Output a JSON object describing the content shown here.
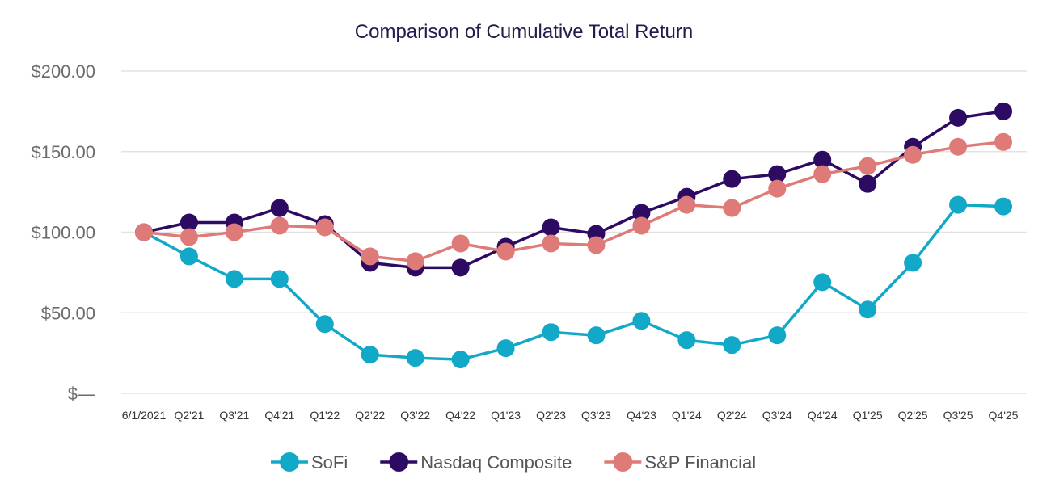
{
  "chart_data": {
    "type": "line",
    "title": "Comparison of Cumulative Total Return",
    "xlabel": "",
    "ylabel": "",
    "ylim": [
      0,
      200
    ],
    "y_ticks": [
      {
        "value": 200,
        "label": "$200.00"
      },
      {
        "value": 150,
        "label": "$150.00"
      },
      {
        "value": 100,
        "label": "$100.00"
      },
      {
        "value": 50,
        "label": "$50.00"
      },
      {
        "value": 0,
        "label": "$—"
      }
    ],
    "grid": true,
    "legend_position": "bottom",
    "categories": [
      "6/1/2021",
      "Q2'21",
      "Q3'21",
      "Q4'21",
      "Q1'22",
      "Q2'22",
      "Q3'22",
      "Q4'22",
      "Q1'23",
      "Q2'23",
      "Q3'23",
      "Q4'23",
      "Q1'24",
      "Q2'24",
      "Q3'24",
      "Q4'24",
      "Q1'25",
      "Q2'25",
      "Q3'25",
      "Q4'25"
    ],
    "series": [
      {
        "name": "SoFi",
        "color": "#12a8c8",
        "values": [
          100,
          85,
          71,
          71,
          43,
          24,
          22,
          21,
          28,
          38,
          36,
          45,
          33,
          30,
          36,
          69,
          52,
          81,
          117,
          116
        ]
      },
      {
        "name": "Nasdaq Composite",
        "color": "#2d0b63",
        "values": [
          100,
          106,
          106,
          115,
          105,
          81,
          78,
          78,
          91,
          103,
          99,
          112,
          122,
          133,
          136,
          145,
          130,
          153,
          171,
          175
        ]
      },
      {
        "name": "S&P Financial",
        "color": "#de7a78",
        "values": [
          100,
          97,
          100,
          104,
          103,
          85,
          82,
          93,
          88,
          93,
          92,
          104,
          117,
          115,
          127,
          136,
          141,
          148,
          153,
          156
        ]
      }
    ]
  }
}
